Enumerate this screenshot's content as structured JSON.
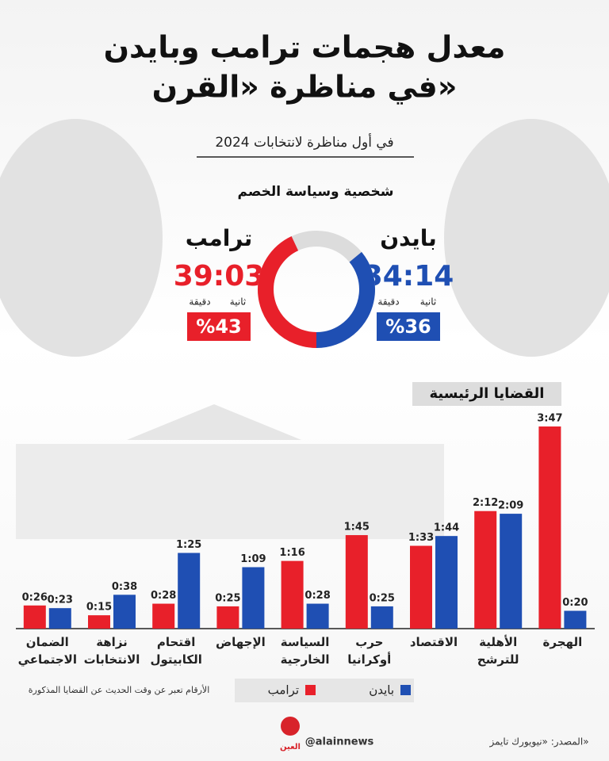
{
  "title_lines": [
    "معدل هجمات ترامب وبايدن",
    "في مناظرة «القرن»"
  ],
  "subtitle": "في أول مناظرة لانتخابات 2024",
  "section": "شخصية وسياسة الخصم",
  "candidates": [
    {
      "name": "بايدن",
      "time": "34:14",
      "seconds_label": "ثانية",
      "minutes_label": "دقيقة",
      "share": 36,
      "share_label": "%36",
      "color": "#1f4fb3"
    },
    {
      "name": "ترامب",
      "time": "39:03",
      "seconds_label": "ثانية",
      "minutes_label": "دقيقة",
      "share": 43,
      "share_label": "%43",
      "color": "#e8202a"
    }
  ],
  "chart_data": {
    "type": "bar",
    "title": "القضايا الرئيسية",
    "categories": [
      "الهجرة",
      "الأهلية للترشح",
      "الاقتصاد",
      "حرب أوكرانيا",
      "السياسة الخارجية",
      "الإجهاض",
      "اقتحام الكابيتول",
      "نزاهة الانتخابات",
      "الضمان الاجتماعي"
    ],
    "series": [
      {
        "name": "ترامب",
        "color": "#e8202a",
        "values": [
          227,
          132,
          93,
          105,
          76,
          25,
          28,
          15,
          26
        ],
        "value_labels": [
          "3:47",
          "2:12",
          "1:33",
          "1:45",
          "1:16",
          "0:25",
          "0:28",
          "0:15",
          "0:26"
        ]
      },
      {
        "name": "بايدن",
        "color": "#1f4fb3",
        "values": [
          20,
          129,
          104,
          25,
          28,
          69,
          85,
          38,
          23
        ],
        "value_labels": [
          "0:20",
          "2:09",
          "1:44",
          "0:25",
          "0:28",
          "1:09",
          "1:25",
          "0:38",
          "0:23"
        ]
      }
    ],
    "note": "الأرقام تعبر عن وقت الحديث عن القضايا المذكورة"
  },
  "footer": {
    "source": "المصدر: «نيويورك تايمز»",
    "handle": "@alainnews",
    "logo": "العين"
  }
}
